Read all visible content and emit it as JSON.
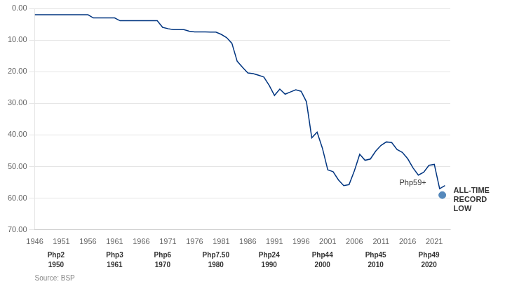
{
  "chart_data": {
    "type": "line",
    "x": [
      1946,
      1947,
      1948,
      1949,
      1950,
      1951,
      1952,
      1953,
      1954,
      1955,
      1956,
      1957,
      1958,
      1959,
      1960,
      1961,
      1962,
      1963,
      1964,
      1965,
      1966,
      1967,
      1968,
      1969,
      1970,
      1971,
      1972,
      1973,
      1974,
      1975,
      1976,
      1977,
      1978,
      1979,
      1980,
      1981,
      1982,
      1983,
      1984,
      1985,
      1986,
      1987,
      1988,
      1989,
      1990,
      1991,
      1992,
      1993,
      1994,
      1995,
      1996,
      1997,
      1998,
      1999,
      2000,
      2001,
      2002,
      2003,
      2004,
      2005,
      2006,
      2007,
      2008,
      2009,
      2010,
      2011,
      2012,
      2013,
      2014,
      2015,
      2016,
      2017,
      2018,
      2019,
      2020,
      2021,
      2022,
      2023
    ],
    "series": [
      {
        "color": "#003580",
        "values": [
          2.0,
          2.0,
          2.0,
          2.0,
          2.0,
          2.0,
          2.0,
          2.0,
          2.0,
          2.0,
          2.02,
          3.0,
          3.0,
          3.0,
          3.0,
          3.0,
          3.9,
          3.9,
          3.9,
          3.9,
          3.9,
          3.9,
          3.9,
          3.9,
          6.0,
          6.4,
          6.7,
          6.7,
          6.7,
          7.2,
          7.4,
          7.4,
          7.4,
          7.5,
          7.5,
          8.2,
          9.2,
          11.0,
          16.7,
          18.6,
          20.4,
          20.6,
          21.1,
          21.7,
          24.3,
          27.5,
          25.5,
          27.1,
          26.4,
          25.7,
          26.2,
          29.5,
          40.9,
          39.1,
          44.2,
          51.0,
          51.6,
          54.2,
          56.0,
          55.7,
          51.3,
          46.1,
          48.0,
          47.6,
          45.1,
          43.3,
          42.2,
          42.4,
          44.6,
          45.5,
          47.5,
          50.4,
          52.7,
          51.8,
          49.6,
          49.3,
          57.0,
          56.0
        ]
      },
      {
        "type": "scatter",
        "color": "#5588bb",
        "marker": "circle",
        "x": [
          2022.5
        ],
        "values": [
          59.0
        ]
      }
    ],
    "xlim": [
      1946,
      2024
    ],
    "ylim": [
      70.0,
      0.0
    ],
    "xticks": [
      1946,
      1951,
      1956,
      1961,
      1966,
      1971,
      1976,
      1981,
      1986,
      1991,
      1996,
      2001,
      2006,
      2011,
      2016,
      2021
    ],
    "yticks": [
      {
        "value": 0,
        "label": "0.00"
      },
      {
        "value": 10,
        "label": "10.00"
      },
      {
        "value": 20,
        "label": "20.00"
      },
      {
        "value": 30,
        "label": "30.00"
      },
      {
        "value": 40,
        "label": "40.00"
      },
      {
        "value": 50,
        "label": "50.00"
      },
      {
        "value": 60,
        "label": "60.00"
      },
      {
        "value": 70,
        "label": "70.00"
      }
    ],
    "grid": "y",
    "annotations": [
      {
        "x": 1950,
        "texts": [
          "Php2",
          "1950"
        ]
      },
      {
        "x": 1961,
        "texts": [
          "Php3",
          "1961"
        ]
      },
      {
        "x": 1970,
        "texts": [
          "Php6",
          "1970"
        ]
      },
      {
        "x": 1980,
        "texts": [
          "Php7.50",
          "1980"
        ]
      },
      {
        "x": 1990,
        "texts": [
          "Php24",
          "1990"
        ]
      },
      {
        "x": 2000,
        "texts": [
          "Php44",
          "2000"
        ]
      },
      {
        "x": 2010,
        "texts": [
          "Php45",
          "2010"
        ]
      },
      {
        "x": 2020,
        "texts": [
          "Php49",
          "2020"
        ]
      },
      {
        "x": 2022.5,
        "y": 59.0,
        "text": "Php59+"
      },
      {
        "x": 2022.5,
        "y": 59.0,
        "text": "ALL-TIME\nRECORD\nLOW"
      }
    ],
    "source": "Source: BSP"
  }
}
